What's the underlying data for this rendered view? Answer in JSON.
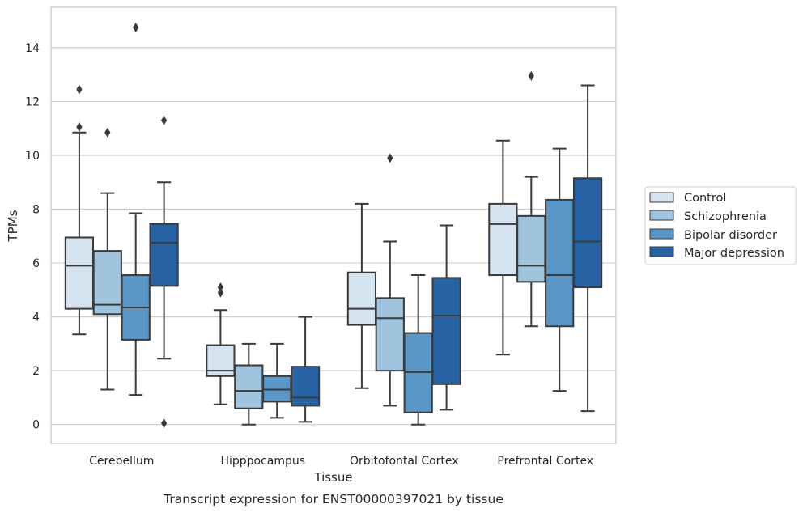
{
  "chart_data": {
    "type": "box",
    "xlabel": "Tissue",
    "ylabel": "TPMs",
    "caption": "Transcript expression for ENST00000397021 by tissue",
    "ylim": [
      -0.7,
      15.5
    ],
    "yticks": [
      0,
      2,
      4,
      6,
      8,
      10,
      12,
      14
    ],
    "grid": true,
    "legend_position": "right",
    "categories": [
      "Cerebellum",
      "Hipppocampus",
      "Orbitofontal Cortex",
      "Prefrontal Cortex"
    ],
    "series": [
      {
        "name": "Control",
        "color": "#d5e2f0",
        "boxes": [
          {
            "min": 3.35,
            "q1": 4.3,
            "median": 5.9,
            "q3": 6.95,
            "max": 10.85,
            "outliers": [
              11.05,
              12.45
            ]
          },
          {
            "min": 0.75,
            "q1": 1.8,
            "median": 2.0,
            "q3": 2.95,
            "max": 4.25,
            "outliers": [
              4.9,
              5.1
            ]
          },
          {
            "min": 1.35,
            "q1": 3.7,
            "median": 4.3,
            "q3": 5.65,
            "max": 8.2,
            "outliers": []
          },
          {
            "min": 2.6,
            "q1": 5.55,
            "median": 7.45,
            "q3": 8.2,
            "max": 10.55,
            "outliers": []
          }
        ]
      },
      {
        "name": "Schizophrenia",
        "color": "#a0c4de",
        "boxes": [
          {
            "min": 1.3,
            "q1": 4.1,
            "median": 4.45,
            "q3": 6.45,
            "max": 8.6,
            "outliers": [
              10.85
            ]
          },
          {
            "min": 0.0,
            "q1": 0.6,
            "median": 1.25,
            "q3": 2.2,
            "max": 3.0,
            "outliers": []
          },
          {
            "min": 0.7,
            "q1": 2.0,
            "median": 3.95,
            "q3": 4.7,
            "max": 6.8,
            "outliers": [
              9.9
            ]
          },
          {
            "min": 3.65,
            "q1": 5.3,
            "median": 5.9,
            "q3": 7.75,
            "max": 9.2,
            "outliers": [
              12.95
            ]
          }
        ]
      },
      {
        "name": "Bipolar disorder",
        "color": "#5a96c6",
        "boxes": [
          {
            "min": 1.1,
            "q1": 3.15,
            "median": 4.35,
            "q3": 5.55,
            "max": 7.85,
            "outliers": [
              14.75
            ]
          },
          {
            "min": 0.25,
            "q1": 0.85,
            "median": 1.3,
            "q3": 1.8,
            "max": 3.0,
            "outliers": []
          },
          {
            "min": 0.0,
            "q1": 0.45,
            "median": 1.95,
            "q3": 3.4,
            "max": 5.55,
            "outliers": []
          },
          {
            "min": 1.25,
            "q1": 3.65,
            "median": 5.55,
            "q3": 8.35,
            "max": 10.25,
            "outliers": []
          }
        ]
      },
      {
        "name": "Major depression",
        "color": "#2763a4",
        "boxes": [
          {
            "min": 2.45,
            "q1": 5.15,
            "median": 6.75,
            "q3": 7.45,
            "max": 9.0,
            "outliers": [
              11.3,
              0.05
            ]
          },
          {
            "min": 0.1,
            "q1": 0.7,
            "median": 1.0,
            "q3": 2.15,
            "max": 4.0,
            "outliers": []
          },
          {
            "min": 0.55,
            "q1": 1.5,
            "median": 4.05,
            "q3": 5.45,
            "max": 7.4,
            "outliers": []
          },
          {
            "min": 0.5,
            "q1": 5.1,
            "median": 6.8,
            "q3": 9.15,
            "max": 12.6,
            "outliers": []
          }
        ]
      }
    ]
  }
}
